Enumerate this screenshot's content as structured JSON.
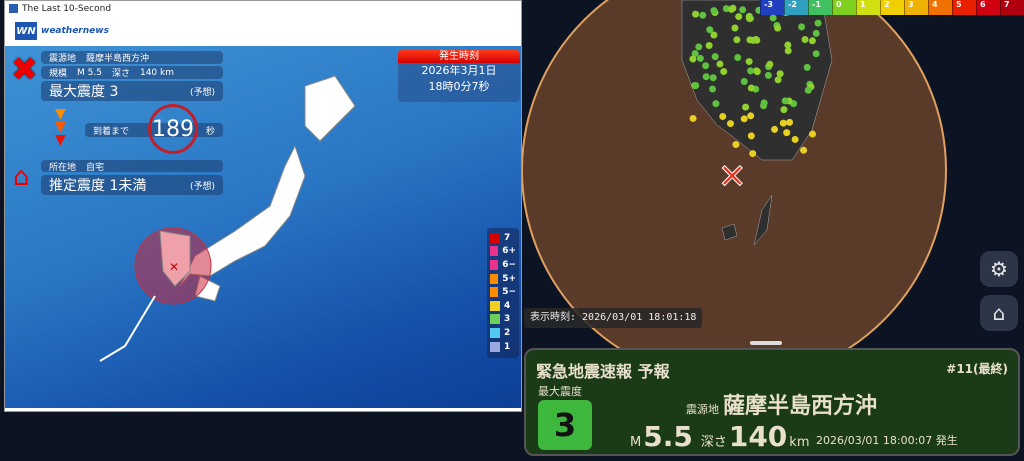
{
  "window": {
    "title": "The Last 10-Second",
    "logo_mark": "WN",
    "logo_text": "weathernews"
  },
  "eew_left": {
    "epicenter_label": "震源地",
    "epicenter": "薩摩半島西方沖",
    "scale_label": "規模",
    "magnitude": "M 5.5",
    "depth_label": "深さ",
    "depth": "140 km",
    "max_intensity": "最大震度 3",
    "forecast": "(予想)",
    "arrival_label": "到着まで",
    "arrival_seconds": "189",
    "seconds_unit": "秒",
    "location_label": "所在地",
    "location": "自宅",
    "estimated_intensity": "推定震度 1未満",
    "forecast2": "(予想)",
    "time_header": "発生時刻",
    "time_date": "2026年3月1日",
    "time_clock": "18時0分7秒",
    "legend": [
      {
        "label": "7",
        "color": "#d40000"
      },
      {
        "label": "6+",
        "color": "#e8328c"
      },
      {
        "label": "6−",
        "color": "#e8328c"
      },
      {
        "label": "5+",
        "color": "#ff8c00"
      },
      {
        "label": "5−",
        "color": "#ff8c00"
      },
      {
        "label": "4",
        "color": "#f0d020"
      },
      {
        "label": "3",
        "color": "#6ccf5a"
      },
      {
        "label": "2",
        "color": "#50c8f0"
      },
      {
        "label": "1",
        "color": "#9aa8e0"
      }
    ]
  },
  "right": {
    "scale": [
      {
        "label": "-3",
        "color": "#2040c0"
      },
      {
        "label": "-2",
        "color": "#30a0c0"
      },
      {
        "label": "-1",
        "color": "#40c060"
      },
      {
        "label": "0",
        "color": "#80d020"
      },
      {
        "label": "1",
        "color": "#d0e010"
      },
      {
        "label": "2",
        "color": "#f0d000"
      },
      {
        "label": "3",
        "color": "#f0b000"
      },
      {
        "label": "4",
        "color": "#f07000"
      },
      {
        "label": "5",
        "color": "#e82000"
      },
      {
        "label": "6",
        "color": "#d00010"
      },
      {
        "label": "7",
        "color": "#b00010"
      }
    ],
    "display_time": "表示時刻: 2026/03/01 18:01:18",
    "panel": {
      "title": "緊急地震速報 予報",
      "report_no": "#11(最終)",
      "max_label": "最大震度",
      "max_value": "3",
      "epicenter_label": "震源地",
      "epicenter": "薩摩半島西方沖",
      "mag_prefix": "M",
      "magnitude": "5.5",
      "depth_label": "深さ",
      "depth": "140",
      "depth_unit": "km",
      "origin_time": "2026/03/01 18:00:07 発生"
    }
  }
}
